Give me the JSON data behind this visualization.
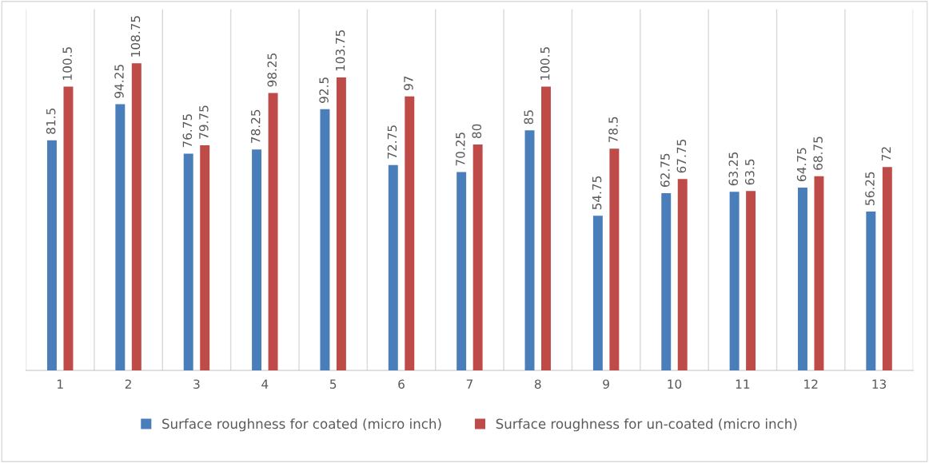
{
  "chart_data": {
    "type": "bar",
    "categories": [
      "1",
      "2",
      "3",
      "4",
      "5",
      "6",
      "7",
      "8",
      "9",
      "10",
      "11",
      "12",
      "13"
    ],
    "series": [
      {
        "name": "Surface roughness for coated (micro inch)",
        "color": "#4a7ebb",
        "values": [
          81.5,
          94.25,
          76.75,
          78.25,
          92.5,
          72.75,
          70.25,
          85,
          54.75,
          62.75,
          63.25,
          64.75,
          56.25
        ]
      },
      {
        "name": "Surface roughness for un-coated (micro inch)",
        "color": "#be4b48",
        "values": [
          100.5,
          108.75,
          79.75,
          98.25,
          103.75,
          97,
          80,
          100.5,
          78.5,
          67.75,
          63.5,
          68.75,
          72
        ]
      }
    ],
    "data_labels": true,
    "grid": "x",
    "legend": "bottom",
    "tick_labels": "x"
  }
}
